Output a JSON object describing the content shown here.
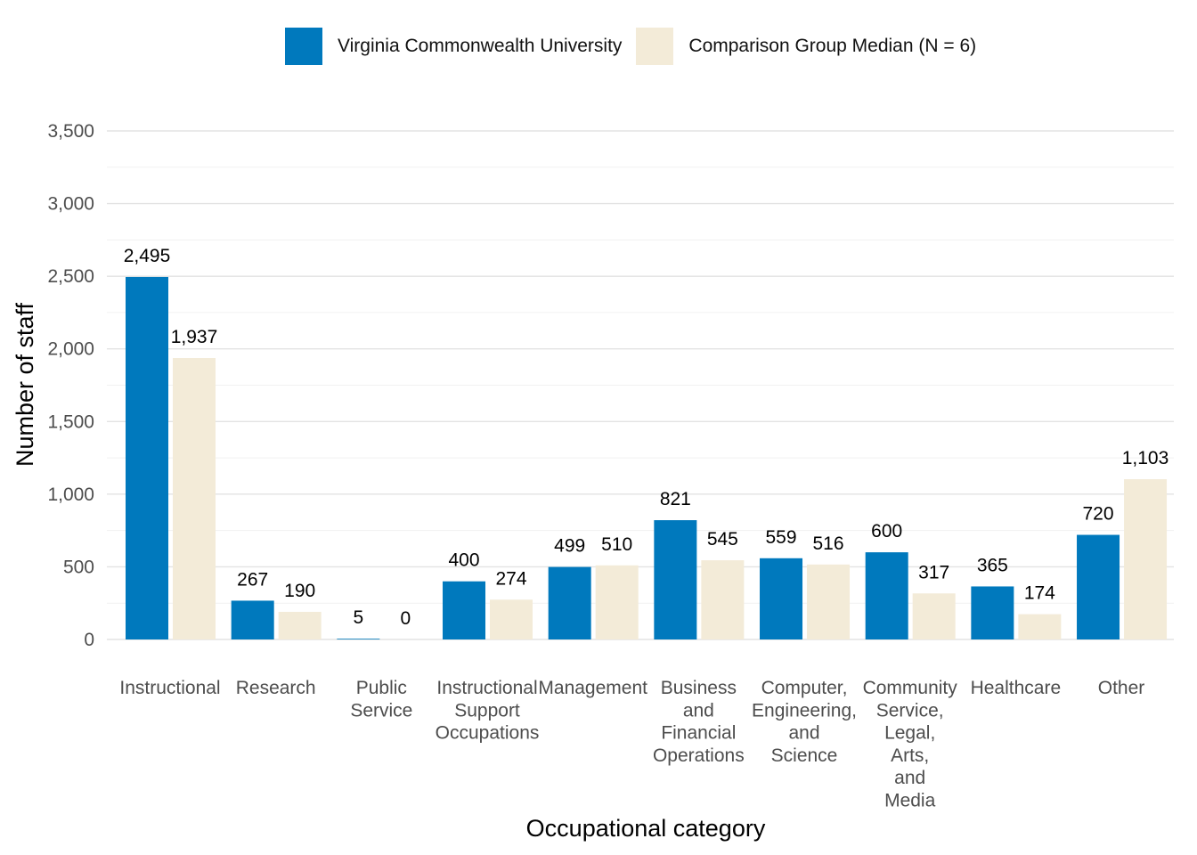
{
  "chart_data": {
    "type": "bar",
    "title": "",
    "xlabel": "Occupational category",
    "ylabel": "Number of staff",
    "ylim": [
      0,
      3500
    ],
    "yticks": [
      0,
      500,
      1000,
      1500,
      2000,
      2500,
      3000,
      3500
    ],
    "ytick_labels": [
      "0",
      "500",
      "1,000",
      "1,500",
      "2,000",
      "2,500",
      "3,000",
      "3,500"
    ],
    "grid": true,
    "legend_position": "top",
    "categories": [
      "Instructional",
      "Research",
      "Public Service",
      "Instructional Support Occupations",
      "Management",
      "Business and Financial Operations",
      "Computer, Engineering, and Science",
      "Community Service, Legal, Arts, and Media",
      "Healthcare",
      "Other"
    ],
    "category_label_lines": [
      [
        "Instructional"
      ],
      [
        "Research"
      ],
      [
        "Public",
        "Service"
      ],
      [
        "Instructional",
        "Support",
        "Occupations"
      ],
      [
        "Management"
      ],
      [
        "Business",
        "and",
        "Financial",
        "Operations"
      ],
      [
        "Computer,",
        "Engineering,",
        "and",
        "Science"
      ],
      [
        "Community",
        "Service,",
        "Legal,",
        "Arts,",
        "and",
        "Media"
      ],
      [
        "Healthcare"
      ],
      [
        "Other"
      ]
    ],
    "series": [
      {
        "name": "Virginia Commonwealth University",
        "color": "#0079bd",
        "values": [
          2495,
          267,
          5,
          400,
          499,
          821,
          559,
          600,
          365,
          720
        ],
        "labels": [
          "2,495",
          "267",
          "5",
          "400",
          "499",
          "821",
          "559",
          "600",
          "365",
          "720"
        ]
      },
      {
        "name": "Comparison Group Median (N = 6)",
        "color": "#f3ebd8",
        "values": [
          1937,
          190,
          0,
          274,
          510,
          545,
          516,
          317,
          174,
          1103
        ],
        "labels": [
          "1,937",
          "190",
          "0",
          "274",
          "510",
          "545",
          "516",
          "317",
          "174",
          "1,103"
        ]
      }
    ]
  }
}
